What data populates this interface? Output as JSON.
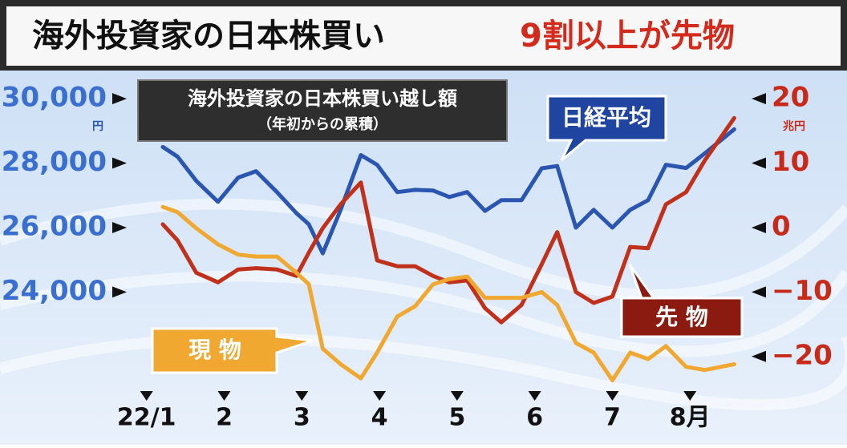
{
  "chart_data": {
    "type": "line",
    "title": "海外投資家の日本株買い",
    "title_highlight": "9割以上が先物",
    "box_title": "海外投資家の日本株買い越し額",
    "box_subtitle": "（年初からの累積）",
    "y_unit": "円",
    "y2_unit": "兆円",
    "x": [
      1.21,
      1.4,
      1.64,
      1.92,
      2.18,
      2.41,
      2.68,
      2.93,
      3.09,
      3.27,
      3.5,
      3.76,
      3.97,
      4.23,
      4.46,
      4.69,
      4.9,
      5.13,
      5.36,
      5.57,
      5.83,
      6.09,
      6.29,
      6.53,
      6.76,
      7.0,
      7.23,
      7.46,
      7.69,
      7.95,
      8.19,
      8.57
    ],
    "xlim": [
      0.6,
      8.7
    ],
    "xticks": [
      {
        "value": 1,
        "label": "22/1"
      },
      2,
      3,
      4,
      5,
      6,
      7,
      {
        "value": 8,
        "label": "8月"
      }
    ],
    "ylim": [
      21000,
      30600
    ],
    "yticks": [
      {
        "value": 24000,
        "label": "24,000"
      },
      {
        "value": 26000,
        "label": "26,000"
      },
      {
        "value": 28000,
        "label": "28,000"
      },
      {
        "value": 30000,
        "label": "30,000"
      }
    ],
    "y2lim": [
      -25,
      23
    ],
    "y2ticks": [
      {
        "value": -20,
        "label": "−20"
      },
      {
        "value": -10,
        "label": "−10"
      },
      0,
      10,
      20
    ],
    "series": [
      {
        "name": "日経平均",
        "color": "#2a55b0",
        "values": [
          28500,
          28200,
          27450,
          26800,
          27550,
          27750,
          27100,
          26450,
          26100,
          25200,
          26550,
          28250,
          27950,
          27100,
          27170,
          27150,
          26950,
          27100,
          26520,
          26850,
          26850,
          27840,
          27910,
          26000,
          26550,
          26000,
          26550,
          26850,
          27950,
          27850,
          28300,
          29050
        ]
      },
      {
        "name": "先 物",
        "color": "#c0301a",
        "axis": "y2",
        "values": [
          0.5,
          -2,
          -7,
          -8.5,
          -6.5,
          -6.3,
          -6.5,
          -7.5,
          -3.9,
          -0.1,
          3.6,
          7,
          -5.1,
          -6,
          -6,
          -7.5,
          -8.5,
          -8.2,
          -12.5,
          -14.7,
          -12,
          -5.7,
          -0.7,
          -10,
          -11.7,
          -10.7,
          -3,
          -3.2,
          3.6,
          5.5,
          10.4,
          17
        ]
      },
      {
        "name": "現 物",
        "color": "#f0a830",
        "axis": "y2",
        "values": [
          3.2,
          2.4,
          -0.1,
          -2.6,
          -4.2,
          -4.5,
          -4.5,
          -7,
          -8.8,
          -18.8,
          -21.2,
          -23.4,
          -19.4,
          -13.8,
          -12.2,
          -8.8,
          -8,
          -7.6,
          -10.9,
          -10.9,
          -10.9,
          -10,
          -12,
          -17.9,
          -19.4,
          -23.7,
          -19.4,
          -20.4,
          -18.4,
          -21.6,
          -22.1,
          -21.2
        ]
      }
    ]
  }
}
